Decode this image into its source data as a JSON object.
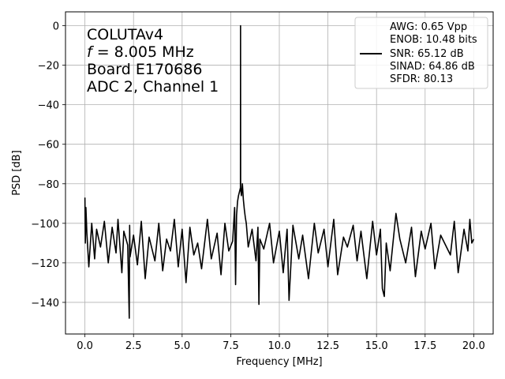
{
  "chart_data": {
    "type": "line",
    "xlabel": "Frequency [MHz]",
    "ylabel": "PSD [dB]",
    "xlim": [
      -1.0,
      21.0
    ],
    "ylim": [
      -156,
      7
    ],
    "xticks": [
      0.0,
      2.5,
      5.0,
      7.5,
      10.0,
      12.5,
      15.0,
      17.5,
      20.0
    ],
    "xtick_labels": [
      "0.0",
      "2.5",
      "5.0",
      "7.5",
      "10.0",
      "12.5",
      "15.0",
      "17.5",
      "20.0"
    ],
    "yticks": [
      0,
      -20,
      -40,
      -60,
      -80,
      -100,
      -120,
      -140
    ],
    "ytick_labels": [
      "0",
      "−20",
      "−40",
      "−60",
      "−80",
      "−100",
      "−120",
      "−140"
    ],
    "grid": true,
    "line_color": "#000000",
    "annotation_lines": [
      "COLUTAv4",
      "= 8.005 MHz",
      "Board E170686",
      "ADC 2, Channel 1"
    ],
    "annotation_symbol": "f",
    "legend": {
      "placement": "top-right",
      "lines": [
        "AWG: 0.65 Vpp",
        "ENOB: 10.48 bits",
        "SNR: 65.12 dB",
        "SINAD: 64.86 dB",
        "SFDR: 80.13"
      ]
    },
    "series": [
      {
        "x": [
          0.0,
          0.02,
          0.05,
          0.1,
          0.2,
          0.35,
          0.5,
          0.6,
          0.8,
          1.0,
          1.2,
          1.4,
          1.6,
          1.7,
          1.9,
          2.0,
          2.2,
          2.28,
          2.3,
          2.32,
          2.5,
          2.7,
          2.9,
          3.1,
          3.3,
          3.6,
          3.8,
          4.0,
          4.2,
          4.4,
          4.6,
          4.8,
          5.0,
          5.2,
          5.4,
          5.6,
          5.8,
          6.0,
          6.3,
          6.5,
          6.8,
          7.0,
          7.2,
          7.4,
          7.6,
          7.7,
          7.75,
          7.8,
          7.85,
          7.9,
          7.95,
          8.0,
          8.005,
          8.01,
          8.05,
          8.1,
          8.15,
          8.2,
          8.25,
          8.3,
          8.4,
          8.6,
          8.8,
          8.9,
          8.95,
          9.0,
          9.2,
          9.5,
          9.7,
          10.0,
          10.2,
          10.4,
          10.5,
          10.7,
          11.0,
          11.2,
          11.5,
          11.8,
          12.0,
          12.3,
          12.5,
          12.8,
          13.0,
          13.3,
          13.5,
          13.8,
          14.0,
          14.2,
          14.5,
          14.8,
          15.0,
          15.2,
          15.3,
          15.4,
          15.5,
          15.7,
          16.0,
          16.2,
          16.5,
          16.8,
          17.0,
          17.3,
          17.5,
          17.8,
          18.0,
          18.3,
          18.5,
          18.8,
          19.0,
          19.2,
          19.5,
          19.7,
          19.8,
          19.9,
          20.0
        ],
        "y": [
          -87,
          -110,
          -92,
          -105,
          -122,
          -100,
          -118,
          -103,
          -112,
          -99,
          -120,
          -102,
          -115,
          -98,
          -125,
          -104,
          -111,
          -148,
          -101,
          -117,
          -106,
          -121,
          -99,
          -128,
          -107,
          -119,
          -100,
          -124,
          -108,
          -114,
          -98,
          -122,
          -103,
          -130,
          -102,
          -116,
          -110,
          -123,
          -98,
          -118,
          -105,
          -126,
          -100,
          -114,
          -109,
          -92,
          -131,
          -96,
          -89,
          -86,
          -84,
          -82,
          0,
          -82,
          -86,
          -80,
          -88,
          -93,
          -97,
          -100,
          -112,
          -103,
          -119,
          -102,
          -141,
          -108,
          -113,
          -100,
          -120,
          -104,
          -125,
          -103,
          -139,
          -101,
          -118,
          -106,
          -128,
          -100,
          -115,
          -103,
          -122,
          -98,
          -126,
          -107,
          -112,
          -101,
          -119,
          -104,
          -128,
          -99,
          -116,
          -103,
          -133,
          -137,
          -110,
          -124,
          -95,
          -108,
          -120,
          -102,
          -127,
          -104,
          -113,
          -100,
          -123,
          -106,
          -110,
          -116,
          -99,
          -125,
          -103,
          -114,
          -98,
          -110,
          -108
        ]
      }
    ]
  }
}
